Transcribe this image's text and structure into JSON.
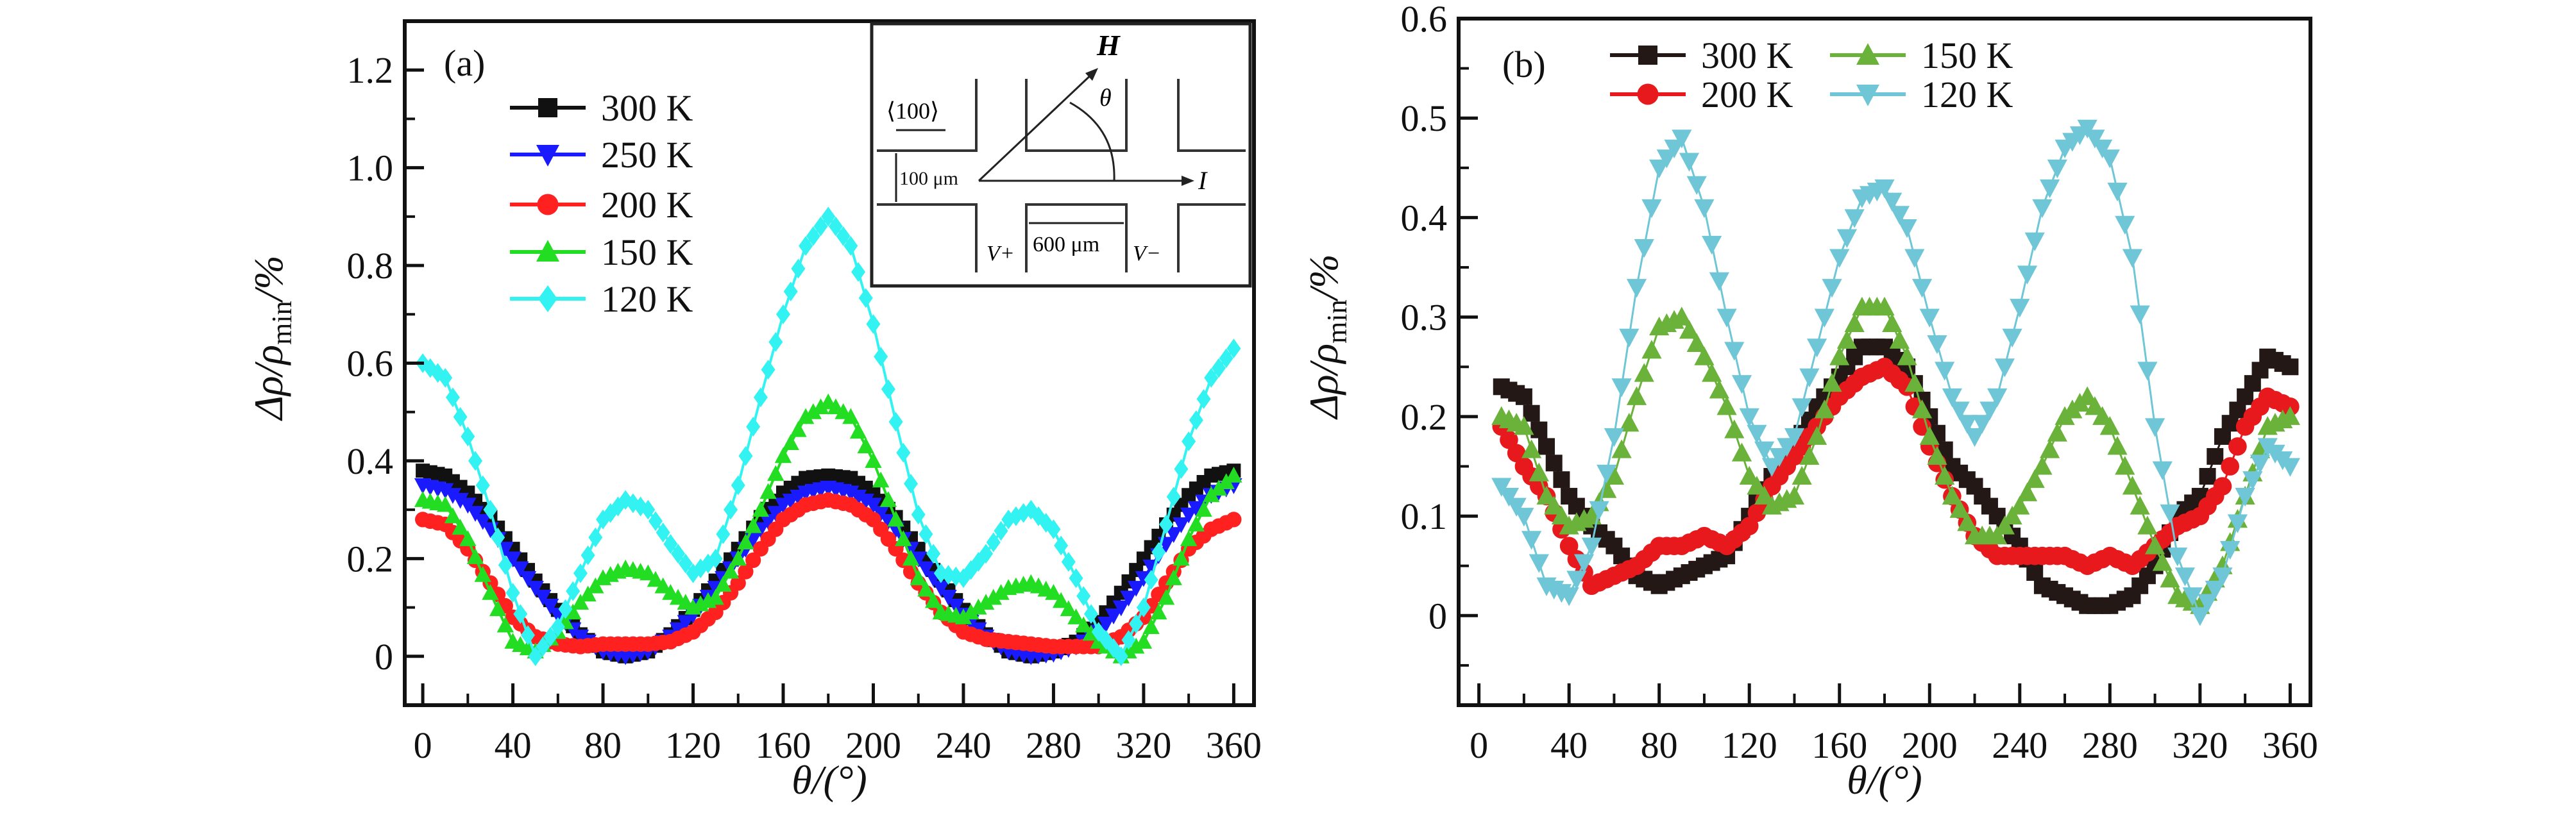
{
  "chart_data": [
    {
      "type": "line",
      "panel_label": "(a)",
      "xlabel": "θ/(°)",
      "ylabel": {
        "main": "Δρ/ρ",
        "sub": "min",
        "tail": "/%"
      },
      "xlim": [
        -8,
        369
      ],
      "ylim": [
        -0.1,
        1.3
      ],
      "xticks": [
        0,
        40,
        80,
        120,
        160,
        200,
        240,
        280,
        320,
        360
      ],
      "xtick_labels": [
        "0",
        "40",
        "80",
        "120",
        "160",
        "200",
        "240",
        "280",
        "320",
        "360"
      ],
      "yticks": [
        0,
        0.2,
        0.4,
        0.6,
        0.8,
        1.0,
        1.2
      ],
      "ytick_labels": [
        "0",
        "0.2",
        "0.4",
        "0.6",
        "0.8",
        "1.0",
        "1.2"
      ],
      "legend_placement": "top-left",
      "x": [
        0,
        10,
        20,
        30,
        40,
        50,
        60,
        70,
        80,
        90,
        100,
        110,
        120,
        130,
        140,
        150,
        160,
        170,
        180,
        190,
        200,
        210,
        220,
        230,
        240,
        250,
        260,
        270,
        280,
        290,
        300,
        310,
        320,
        330,
        340,
        350,
        360
      ],
      "series": [
        {
          "name": "300 K",
          "color": "#111111",
          "marker": "square",
          "values": [
            0.38,
            0.37,
            0.335,
            0.285,
            0.22,
            0.155,
            0.095,
            0.045,
            0.01,
            0,
            0.01,
            0.045,
            0.095,
            0.155,
            0.22,
            0.285,
            0.335,
            0.365,
            0.37,
            0.365,
            0.335,
            0.285,
            0.22,
            0.155,
            0.095,
            0.045,
            0.01,
            0,
            0.01,
            0.03,
            0.07,
            0.13,
            0.2,
            0.27,
            0.33,
            0.37,
            0.38
          ]
        },
        {
          "name": "250 K",
          "color": "#1a1aff",
          "marker": "triangle-down",
          "values": [
            0.35,
            0.34,
            0.31,
            0.26,
            0.2,
            0.14,
            0.085,
            0.04,
            0.01,
            0,
            0.01,
            0.04,
            0.085,
            0.14,
            0.2,
            0.26,
            0.31,
            0.335,
            0.345,
            0.335,
            0.31,
            0.26,
            0.2,
            0.14,
            0.085,
            0.04,
            0.01,
            0,
            0.005,
            0.02,
            0.05,
            0.1,
            0.16,
            0.23,
            0.29,
            0.33,
            0.35
          ]
        },
        {
          "name": "200 K",
          "color": "#ff2020",
          "marker": "circle",
          "values": [
            0.28,
            0.27,
            0.22,
            0.15,
            0.08,
            0.04,
            0.025,
            0.02,
            0.025,
            0.025,
            0.025,
            0.03,
            0.05,
            0.09,
            0.15,
            0.22,
            0.28,
            0.31,
            0.32,
            0.31,
            0.28,
            0.22,
            0.15,
            0.09,
            0.05,
            0.035,
            0.03,
            0.025,
            0.02,
            0.02,
            0.02,
            0.04,
            0.08,
            0.15,
            0.22,
            0.26,
            0.28
          ]
        },
        {
          "name": "150 K",
          "color": "#22dd22",
          "marker": "triangle-up",
          "values": [
            0.32,
            0.31,
            0.24,
            0.13,
            0.03,
            0.01,
            0.05,
            0.11,
            0.16,
            0.18,
            0.17,
            0.13,
            0.1,
            0.12,
            0.2,
            0.3,
            0.41,
            0.49,
            0.52,
            0.49,
            0.4,
            0.28,
            0.16,
            0.09,
            0.08,
            0.11,
            0.14,
            0.15,
            0.13,
            0.08,
            0.03,
            0,
            0.03,
            0.12,
            0.24,
            0.33,
            0.37
          ]
        },
        {
          "name": "120 K",
          "color": "#33f2f2",
          "marker": "diamond",
          "values": [
            0.6,
            0.57,
            0.45,
            0.3,
            0.13,
            0,
            0.06,
            0.17,
            0.28,
            0.32,
            0.3,
            0.23,
            0.17,
            0.2,
            0.35,
            0.53,
            0.7,
            0.84,
            0.9,
            0.84,
            0.68,
            0.48,
            0.29,
            0.17,
            0.16,
            0.21,
            0.28,
            0.3,
            0.26,
            0.16,
            0.05,
            0,
            0.1,
            0.27,
            0.44,
            0.57,
            0.63
          ]
        }
      ],
      "inset": {
        "field_label": "H",
        "angle_label": "θ",
        "direction_label": "⟨100⟩",
        "current_label": "I",
        "width_label": "100 μm",
        "spacing_label": "600 μm",
        "v_plus": "V+",
        "v_minus": "V−"
      }
    },
    {
      "type": "line",
      "panel_label": "(b)",
      "xlabel": "θ/(°)",
      "ylabel": {
        "main": "Δρ/ρ",
        "sub": "min",
        "tail": "/%"
      },
      "xlim": [
        -9,
        369
      ],
      "ylim": [
        -0.09,
        0.6
      ],
      "xticks": [
        0,
        40,
        80,
        120,
        160,
        200,
        240,
        280,
        320,
        360
      ],
      "xtick_labels": [
        "0",
        "40",
        "80",
        "120",
        "160",
        "200",
        "240",
        "280",
        "320",
        "360"
      ],
      "yticks": [
        0,
        0.1,
        0.2,
        0.3,
        0.4,
        0.5,
        0.6
      ],
      "ytick_labels": [
        "0",
        "0.1",
        "0.2",
        "0.3",
        "0.4",
        "0.5",
        "0.6"
      ],
      "legend_placement": "top-left",
      "x": [
        10,
        20,
        30,
        40,
        50,
        60,
        70,
        80,
        90,
        100,
        110,
        120,
        130,
        140,
        150,
        160,
        170,
        180,
        190,
        200,
        210,
        220,
        230,
        240,
        250,
        260,
        270,
        280,
        290,
        300,
        310,
        320,
        330,
        340,
        350,
        360
      ],
      "series": [
        {
          "name": "300 K",
          "color": "#231815",
          "marker": "square",
          "values": [
            0.23,
            0.22,
            0.17,
            0.12,
            0.09,
            0.07,
            0.04,
            0.03,
            0.04,
            0.05,
            0.06,
            0.1,
            0.14,
            0.17,
            0.21,
            0.24,
            0.27,
            0.27,
            0.25,
            0.2,
            0.15,
            0.13,
            0.1,
            0.07,
            0.03,
            0.02,
            0.01,
            0.01,
            0.02,
            0.05,
            0.1,
            0.12,
            0.18,
            0.22,
            0.26,
            0.25
          ]
        },
        {
          "name": "200 K",
          "color": "#e8191c",
          "marker": "circle",
          "values": [
            0.19,
            0.15,
            0.12,
            0.07,
            0.03,
            0.04,
            0.05,
            0.07,
            0.07,
            0.08,
            0.07,
            0.09,
            0.13,
            0.16,
            0.19,
            0.22,
            0.24,
            0.25,
            0.23,
            0.17,
            0.12,
            0.08,
            0.06,
            0.06,
            0.06,
            0.06,
            0.05,
            0.06,
            0.05,
            0.07,
            0.09,
            0.1,
            0.13,
            0.19,
            0.22,
            0.21
          ]
        },
        {
          "name": "150 K",
          "color": "#6ab23a",
          "marker": "triangle-up",
          "values": [
            0.2,
            0.19,
            0.12,
            0.09,
            0.1,
            0.14,
            0.22,
            0.29,
            0.3,
            0.26,
            0.21,
            0.14,
            0.11,
            0.12,
            0.18,
            0.26,
            0.31,
            0.31,
            0.26,
            0.18,
            0.12,
            0.08,
            0.08,
            0.11,
            0.15,
            0.2,
            0.22,
            0.19,
            0.13,
            0.07,
            0.02,
            0.01,
            0.05,
            0.12,
            0.19,
            0.2
          ]
        },
        {
          "name": "120 K",
          "color": "#6ec6d6",
          "marker": "triangle-down",
          "values": [
            0.13,
            0.1,
            0.03,
            0.02,
            0.07,
            0.18,
            0.33,
            0.45,
            0.48,
            0.41,
            0.3,
            0.2,
            0.15,
            0.18,
            0.27,
            0.36,
            0.42,
            0.43,
            0.39,
            0.3,
            0.22,
            0.18,
            0.22,
            0.31,
            0.41,
            0.47,
            0.49,
            0.46,
            0.36,
            0.19,
            0.06,
            0,
            0.04,
            0.12,
            0.17,
            0.15
          ]
        }
      ]
    }
  ]
}
